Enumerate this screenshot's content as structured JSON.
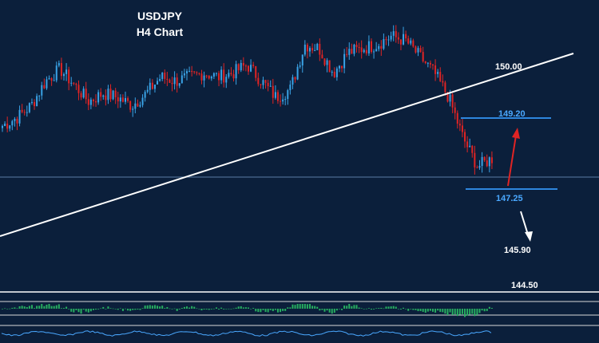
{
  "title_line1": "USDJPY",
  "title_line2": "H4 Chart",
  "colors": {
    "background": "#0b1f3b",
    "bull_candle": "#3aa3e6",
    "bear_candle": "#e02424",
    "trendline": "#ffffff",
    "horizontal_level": "#2e86de",
    "level_text_blue": "#4aa8ff",
    "level_text_white": "#ffffff",
    "arrow_up": "#e02424",
    "arrow_down": "#ffffff",
    "histogram": "#27ae60"
  },
  "chart_data": {
    "type": "candlestick",
    "symbol": "USDJPY",
    "timeframe": "H4",
    "ylim": [
      144.3,
      151.0
    ],
    "annotations": [
      {
        "text": "150.00",
        "value": 150.0,
        "kind": "trendline-level"
      },
      {
        "text": "149.20",
        "value": 149.2,
        "kind": "resistance"
      },
      {
        "text": "147.25",
        "value": 147.25,
        "kind": "support"
      },
      {
        "text": "145.90",
        "value": 145.9,
        "kind": "target"
      },
      {
        "text": "144.50",
        "value": 144.5,
        "kind": "target"
      }
    ],
    "price_path": [
      148.3,
      148.5,
      148.8,
      149.4,
      149.7,
      149.3,
      148.9,
      149.1,
      149.0,
      148.8,
      149.1,
      149.5,
      149.4,
      149.5,
      149.6,
      149.5,
      149.6,
      149.8,
      149.4,
      149.0,
      149.2,
      150.3,
      150.2,
      149.6,
      150.1,
      150.2,
      150.3,
      150.5,
      150.4,
      150.0,
      149.6,
      149.0,
      148.0,
      147.3,
      147.5
    ]
  }
}
